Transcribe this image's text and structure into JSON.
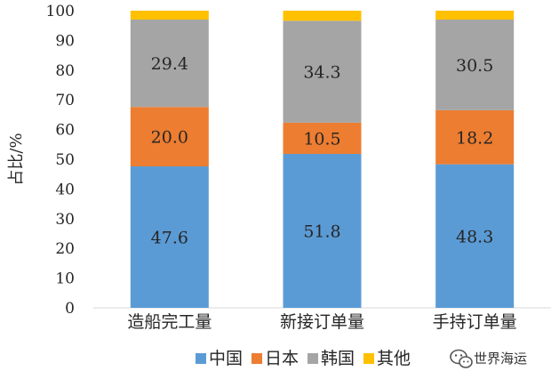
{
  "chart_data": {
    "type": "bar",
    "stacked": true,
    "categories": [
      "造船完工量",
      "新接订单量",
      "手持订单量"
    ],
    "series": [
      {
        "name": "中国",
        "values": [
          47.6,
          51.8,
          48.3
        ],
        "color": "#5B9BD5",
        "show_labels": true
      },
      {
        "name": "日本",
        "values": [
          20.0,
          10.5,
          18.2
        ],
        "color": "#ED7D31",
        "show_labels": true
      },
      {
        "name": "韩国",
        "values": [
          29.4,
          34.3,
          30.5
        ],
        "color": "#A5A5A5",
        "show_labels": true
      },
      {
        "name": "其他",
        "values": [
          3.0,
          3.4,
          3.0
        ],
        "color": "#FFC000",
        "show_labels": false
      }
    ],
    "ylabel": "占比/%",
    "xlabel": "",
    "ylim": [
      0,
      100
    ],
    "yticks": [
      0,
      10,
      20,
      30,
      40,
      50,
      60,
      70,
      80,
      90,
      100
    ],
    "grid": false,
    "legend_position": "bottom"
  },
  "watermark": {
    "icon": "wechat-icon",
    "text": "世界海运"
  }
}
